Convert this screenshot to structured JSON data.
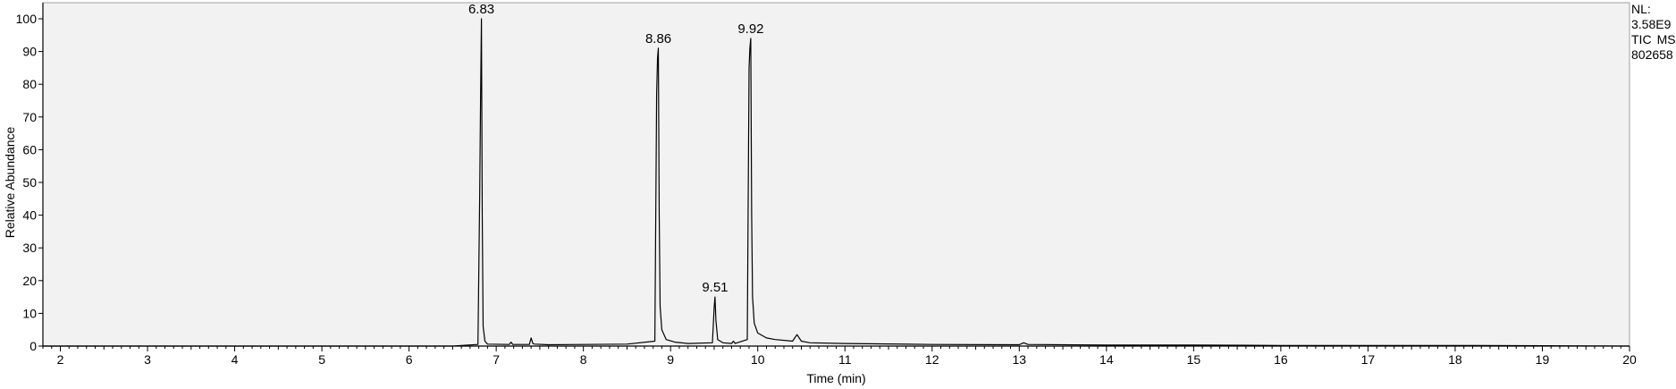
{
  "chart_data": {
    "type": "line",
    "title": "",
    "xlabel": "Time (min)",
    "ylabel": "Relative Abundance",
    "xlim": [
      1.8,
      20
    ],
    "ylim": [
      0,
      100
    ],
    "x_ticks": [
      2,
      3,
      4,
      5,
      6,
      7,
      8,
      9,
      10,
      11,
      12,
      13,
      14,
      15,
      16,
      17,
      18,
      19,
      20
    ],
    "y_ticks": [
      0,
      10,
      20,
      30,
      40,
      50,
      60,
      70,
      80,
      90,
      100
    ],
    "peaks": [
      {
        "x": 6.83,
        "y": 100,
        "label": "6.83"
      },
      {
        "x": 8.86,
        "y": 91,
        "label": "8.86"
      },
      {
        "x": 9.51,
        "y": 15,
        "label": "9.51"
      },
      {
        "x": 9.92,
        "y": 94,
        "label": "9.92"
      }
    ],
    "series": [
      {
        "x": [
          1.8,
          6.5,
          6.79,
          6.81,
          6.82,
          6.83,
          6.84,
          6.85,
          6.87,
          6.9,
          7.15,
          7.17,
          7.19,
          7.38,
          7.4,
          7.42,
          7.44,
          7.6,
          8.0,
          8.5,
          8.82,
          8.84,
          8.85,
          8.86,
          8.87,
          8.88,
          8.9,
          8.95,
          9.05,
          9.2,
          9.48,
          9.5,
          9.51,
          9.52,
          9.54,
          9.6,
          9.7,
          9.72,
          9.74,
          9.88,
          9.9,
          9.91,
          9.92,
          9.93,
          9.94,
          9.96,
          10.0,
          10.1,
          10.2,
          10.4,
          10.45,
          10.5,
          10.6,
          11.0,
          12.0,
          13.0,
          13.05,
          13.1,
          14.0,
          15.0,
          16.0,
          17.0,
          18.0,
          19.0,
          20.0
        ],
        "y": [
          0,
          0,
          0.5,
          45,
          75,
          100,
          40,
          6,
          1.5,
          0.6,
          0.5,
          1.2,
          0.5,
          0.5,
          2.5,
          0.8,
          0.6,
          0.4,
          0.5,
          0.6,
          1.5,
          77,
          88,
          91,
          40,
          12,
          5,
          2,
          1.2,
          0.8,
          1,
          12,
          15,
          8,
          2,
          1,
          0.8,
          1.5,
          0.8,
          2,
          85,
          91,
          94,
          40,
          15,
          7,
          4,
          2.5,
          2,
          1.5,
          3.5,
          1.5,
          1,
          0.8,
          0.5,
          0.4,
          1,
          0.5,
          0.3,
          0.3,
          0.2,
          0.2,
          0.2,
          0.1,
          0
        ]
      }
    ],
    "grid": false,
    "legend": "none"
  },
  "info": {
    "nl_label": "NL:",
    "nl_value": "3.58E9",
    "trace_type": "TIC",
    "ms_label": "MS",
    "sample_id": "802658"
  }
}
